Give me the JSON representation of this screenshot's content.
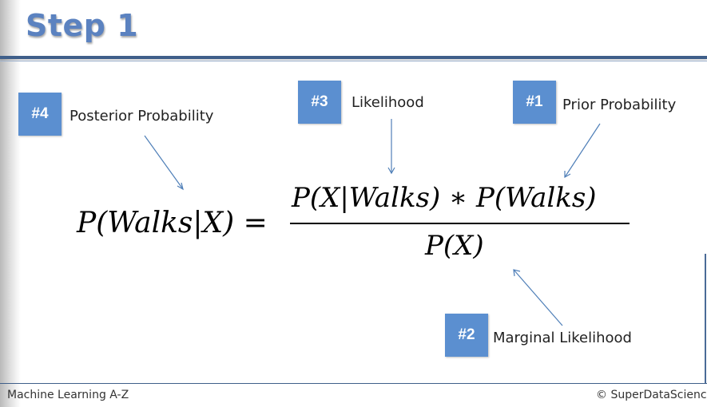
{
  "slide": {
    "title": "Step 1"
  },
  "badges": [
    {
      "id": "#4",
      "label": "Posterior Probability"
    },
    {
      "id": "#3",
      "label": "Likelihood"
    },
    {
      "id": "#1",
      "label": "Prior Probability"
    },
    {
      "id": "#2",
      "label": "Marginal Likelihood"
    }
  ],
  "formula": {
    "lhs": "P(Walks|X) =",
    "numerator": "P(X|Walks) ∗ P(Walks)",
    "denominator": "P(X)"
  },
  "footer": {
    "left": "Machine Learning A-Z",
    "right": "© SuperDataScienc"
  },
  "colors": {
    "title": "#5b82c0",
    "badge": "#5b8fd0",
    "rule": "#3f5f8a",
    "arrow": "#4f7fb8"
  }
}
